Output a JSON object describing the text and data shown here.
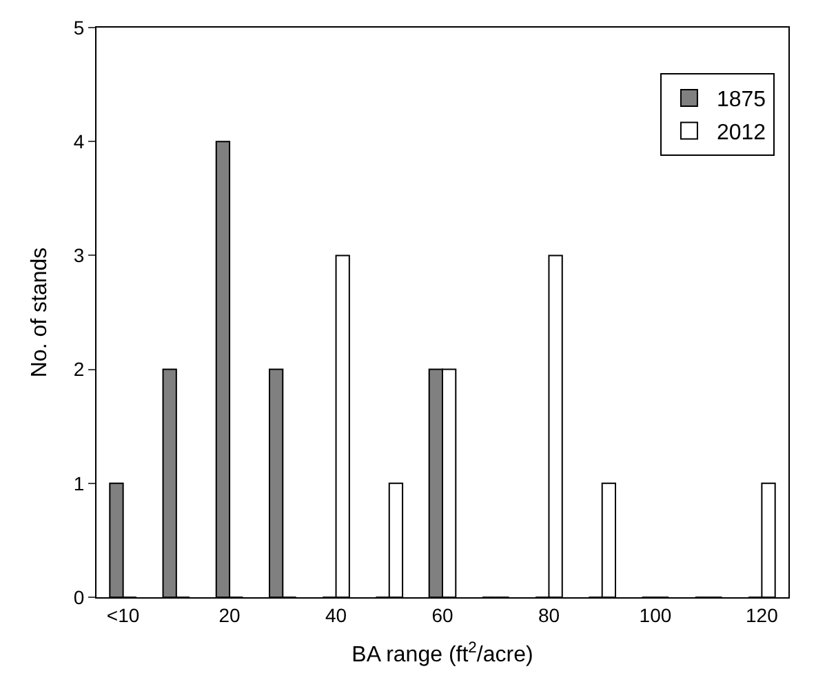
{
  "chart_data": {
    "type": "bar",
    "xlabel": "BA range (ft$^{2}$/acre)",
    "ylabel": "No. of stands",
    "categories": [
      "<10",
      null,
      "20",
      null,
      "40",
      null,
      "60",
      null,
      "80",
      null,
      "100",
      null,
      "120"
    ],
    "series": [
      {
        "name": "1875",
        "color": "#808080",
        "values": [
          1,
          2,
          4,
          2,
          0,
          0,
          2,
          0,
          0,
          0,
          0,
          0,
          0
        ]
      },
      {
        "name": "2012",
        "color": "#ffffff",
        "values": [
          0,
          0,
          0,
          0,
          3,
          1,
          2,
          0,
          3,
          1,
          0,
          0,
          1
        ]
      }
    ],
    "ylim": [
      0,
      5
    ],
    "yticks": [
      0,
      1,
      2,
      3,
      4,
      5
    ],
    "legend": "top right"
  }
}
